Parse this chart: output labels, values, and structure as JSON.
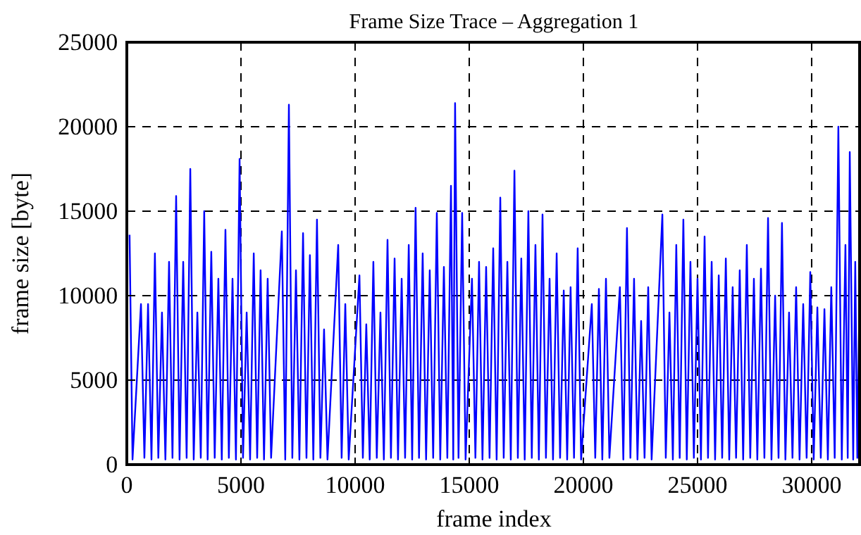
{
  "chart_data": {
    "type": "line",
    "title": "Frame Size Trace – Aggregation 1",
    "xlabel": "frame index",
    "ylabel": "frame size [byte]",
    "xlim": [
      0,
      32100
    ],
    "ylim": [
      0,
      25000
    ],
    "xticks": [
      0,
      5000,
      10000,
      15000,
      20000,
      25000,
      30000
    ],
    "yticks": [
      0,
      5000,
      10000,
      15000,
      20000,
      25000
    ],
    "grid": true,
    "marker": "none",
    "line_style": "solid",
    "series": [
      {
        "color": "#0000ff",
        "x": [
          120,
          250,
          620,
          770,
          930,
          1080,
          1230,
          1380,
          1540,
          1690,
          1850,
          2000,
          2160,
          2310,
          2470,
          2620,
          2780,
          2930,
          3090,
          3240,
          3390,
          3540,
          3700,
          3850,
          4010,
          4160,
          4320,
          4470,
          4630,
          4780,
          4940,
          5090,
          5250,
          5400,
          5560,
          5710,
          5860,
          6010,
          6170,
          6320,
          6790,
          6940,
          7100,
          7250,
          7410,
          7560,
          7720,
          7870,
          8020,
          8170,
          8330,
          8480,
          8640,
          8790,
          9260,
          9410,
          9570,
          9720,
          10190,
          10340,
          10490,
          10640,
          10800,
          10950,
          11110,
          11260,
          11420,
          11570,
          11730,
          11880,
          12040,
          12190,
          12350,
          12500,
          12650,
          12800,
          12960,
          13110,
          13270,
          13420,
          13580,
          13730,
          13890,
          14040,
          14200,
          14300,
          14380,
          14530,
          14690,
          14840,
          15120,
          15270,
          15430,
          15580,
          15740,
          15890,
          16050,
          16200,
          16360,
          16510,
          16670,
          16820,
          16980,
          17130,
          17280,
          17430,
          17590,
          17740,
          17900,
          18050,
          18210,
          18360,
          18520,
          18670,
          18830,
          18980,
          19140,
          19290,
          19440,
          19590,
          19750,
          19900,
          20370,
          20520,
          20680,
          20830,
          20990,
          21140,
          21600,
          21750,
          21910,
          22060,
          22220,
          22370,
          22530,
          22680,
          22840,
          22990,
          23460,
          23610,
          23770,
          23920,
          24070,
          24220,
          24380,
          24530,
          24690,
          24840,
          25000,
          25150,
          25310,
          25460,
          25620,
          25770,
          25930,
          26080,
          26240,
          26390,
          26540,
          26690,
          26850,
          27000,
          27160,
          27310,
          27470,
          27620,
          27780,
          27930,
          28090,
          28240,
          28400,
          28550,
          28700,
          28850,
          29010,
          29160,
          29320,
          29470,
          29630,
          29780,
          29940,
          30090,
          30250,
          30400,
          30560,
          30710,
          30860,
          31010,
          31170,
          31320,
          31480,
          31580,
          31670,
          31820,
          31910,
          32000,
          32100
        ],
        "values": [
          13600,
          300,
          9500,
          400,
          9500,
          300,
          12500,
          400,
          9000,
          300,
          12000,
          400,
          15900,
          300,
          12000,
          400,
          17500,
          300,
          9000,
          400,
          15000,
          300,
          12600,
          400,
          11000,
          300,
          13900,
          400,
          11000,
          300,
          18100,
          400,
          9000,
          300,
          12500,
          400,
          11500,
          300,
          11000,
          400,
          13800,
          300,
          21300,
          400,
          11500,
          300,
          13700,
          400,
          12400,
          300,
          14500,
          400,
          8000,
          300,
          13000,
          400,
          9500,
          300,
          11200,
          400,
          8300,
          300,
          12000,
          400,
          9000,
          300,
          13300,
          400,
          12200,
          300,
          11000,
          400,
          13000,
          300,
          15200,
          400,
          12500,
          300,
          11500,
          400,
          14900,
          300,
          11700,
          400,
          16500,
          300,
          21400,
          400,
          14900,
          300,
          11000,
          400,
          12000,
          300,
          11700,
          400,
          12800,
          300,
          15800,
          400,
          12000,
          300,
          17400,
          400,
          12200,
          300,
          15000,
          400,
          13000,
          300,
          14800,
          400,
          11000,
          300,
          12500,
          400,
          10300,
          300,
          10500,
          400,
          12800,
          300,
          9500,
          400,
          10400,
          300,
          11000,
          400,
          10500,
          300,
          14000,
          400,
          11000,
          300,
          8500,
          400,
          10500,
          300,
          14800,
          400,
          9000,
          300,
          13000,
          400,
          14500,
          300,
          12000,
          400,
          11000,
          300,
          13500,
          400,
          12000,
          300,
          11200,
          400,
          12200,
          300,
          10500,
          400,
          11500,
          300,
          13000,
          400,
          11000,
          300,
          11600,
          400,
          14600,
          300,
          10000,
          400,
          14300,
          300,
          9000,
          400,
          10500,
          300,
          9500,
          400,
          11400,
          300,
          9300,
          400,
          9200,
          300,
          10500,
          400,
          20000,
          300,
          13000,
          400,
          18500,
          300,
          12000,
          400,
          10500
        ]
      }
    ]
  }
}
